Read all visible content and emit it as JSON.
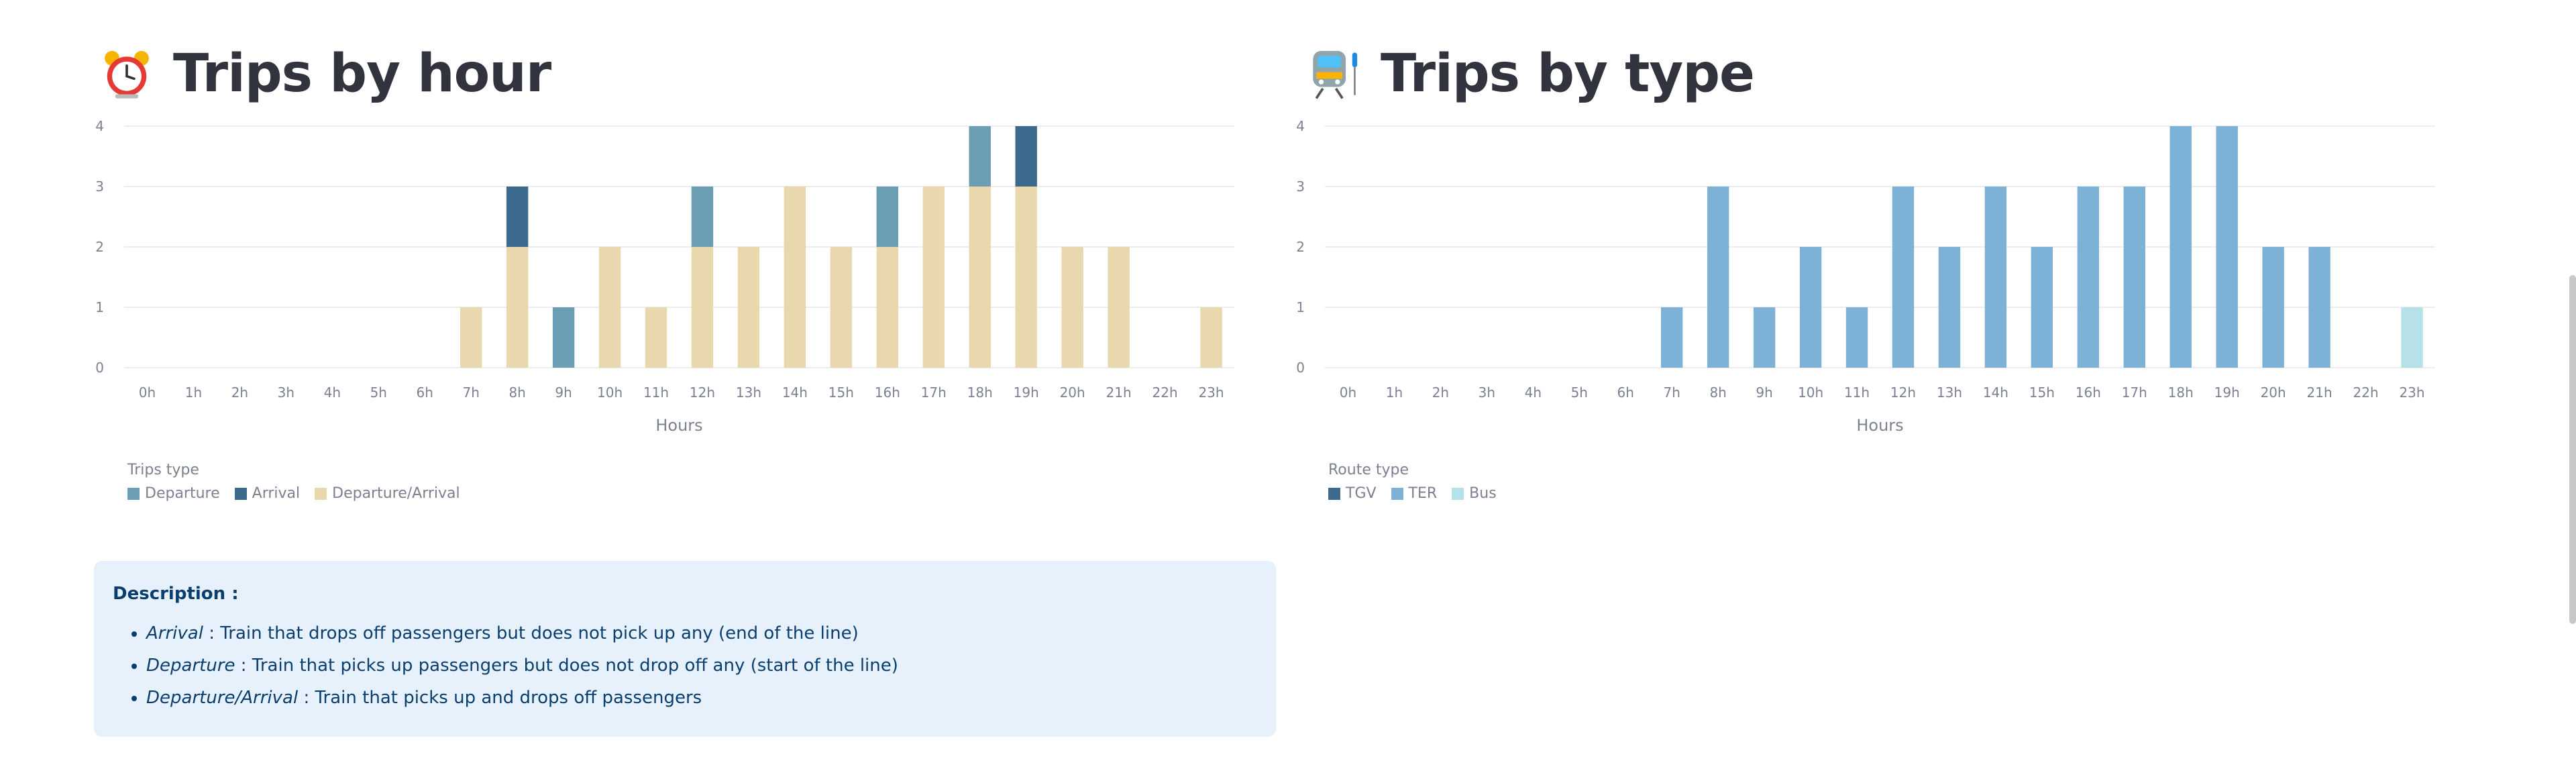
{
  "left": {
    "title": "Trips by hour",
    "emoji": "alarm-clock-icon",
    "xlabel": "Hours",
    "legend_title": "Trips type",
    "legend": [
      {
        "name": "Departure",
        "color": "#6b9db3"
      },
      {
        "name": "Arrival",
        "color": "#3c6a8c"
      },
      {
        "name": "Departure/Arrival",
        "color": "#e9d7ae"
      }
    ]
  },
  "right": {
    "title": "Trips by type",
    "emoji": "train-icon",
    "xlabel": "Hours",
    "legend_title": "Route type",
    "legend": [
      {
        "name": "TGV",
        "color": "#3c6a8c"
      },
      {
        "name": "TER",
        "color": "#7db2d6"
      },
      {
        "name": "Bus",
        "color": "#b7e1e8"
      }
    ]
  },
  "description": {
    "title": "Description :",
    "items": [
      {
        "term": "Arrival",
        "text": " : Train that drops off passengers but does not pick up any (end of the line)"
      },
      {
        "term": "Departure",
        "text": " : Train that picks up passengers but does not drop off any (start of the line)"
      },
      {
        "term": "Departure/Arrival",
        "text": " : Train that picks up and drops off passengers"
      }
    ]
  },
  "chart_data": [
    {
      "type": "bar",
      "stacked": true,
      "title": "Trips by hour",
      "xlabel": "Hours",
      "ylabel": "",
      "ylim": [
        0,
        4
      ],
      "yticks": [
        0,
        1,
        2,
        3,
        4
      ],
      "grid": true,
      "legend_title": "Trips type",
      "legend_position": "bottom-left",
      "categories": [
        "0h",
        "1h",
        "2h",
        "3h",
        "4h",
        "5h",
        "6h",
        "7h",
        "8h",
        "9h",
        "10h",
        "11h",
        "12h",
        "13h",
        "14h",
        "15h",
        "16h",
        "17h",
        "18h",
        "19h",
        "20h",
        "21h",
        "22h",
        "23h"
      ],
      "series": [
        {
          "name": "Departure/Arrival",
          "color": "#e9d7ae",
          "values": [
            0,
            0,
            0,
            0,
            0,
            0,
            0,
            1,
            2,
            0,
            2,
            1,
            2,
            2,
            3,
            2,
            2,
            3,
            3,
            3,
            2,
            2,
            0,
            1
          ]
        },
        {
          "name": "Departure",
          "color": "#6b9db3",
          "values": [
            0,
            0,
            0,
            0,
            0,
            0,
            0,
            0,
            0,
            1,
            0,
            0,
            1,
            0,
            0,
            0,
            1,
            0,
            1,
            0,
            0,
            0,
            0,
            0
          ]
        },
        {
          "name": "Arrival",
          "color": "#3c6a8c",
          "values": [
            0,
            0,
            0,
            0,
            0,
            0,
            0,
            0,
            1,
            0,
            0,
            0,
            0,
            0,
            0,
            0,
            0,
            0,
            0,
            1,
            0,
            0,
            0,
            0
          ]
        }
      ]
    },
    {
      "type": "bar",
      "stacked": true,
      "title": "Trips by type",
      "xlabel": "Hours",
      "ylabel": "",
      "ylim": [
        0,
        4
      ],
      "yticks": [
        0,
        1,
        2,
        3,
        4
      ],
      "grid": true,
      "legend_title": "Route type",
      "legend_position": "bottom-left",
      "categories": [
        "0h",
        "1h",
        "2h",
        "3h",
        "4h",
        "5h",
        "6h",
        "7h",
        "8h",
        "9h",
        "10h",
        "11h",
        "12h",
        "13h",
        "14h",
        "15h",
        "16h",
        "17h",
        "18h",
        "19h",
        "20h",
        "21h",
        "22h",
        "23h"
      ],
      "series": [
        {
          "name": "TGV",
          "color": "#3c6a8c",
          "values": [
            0,
            0,
            0,
            0,
            0,
            0,
            0,
            0,
            0,
            0,
            0,
            0,
            0,
            0,
            0,
            0,
            0,
            0,
            0,
            0,
            0,
            0,
            0,
            0
          ]
        },
        {
          "name": "TER",
          "color": "#7db2d6",
          "values": [
            0,
            0,
            0,
            0,
            0,
            0,
            0,
            1,
            3,
            1,
            2,
            1,
            3,
            2,
            3,
            2,
            3,
            3,
            4,
            4,
            2,
            2,
            0,
            0
          ]
        },
        {
          "name": "Bus",
          "color": "#b7e1e8",
          "values": [
            0,
            0,
            0,
            0,
            0,
            0,
            0,
            0,
            0,
            0,
            0,
            0,
            0,
            0,
            0,
            0,
            0,
            0,
            0,
            0,
            0,
            0,
            0,
            1
          ]
        }
      ]
    }
  ]
}
